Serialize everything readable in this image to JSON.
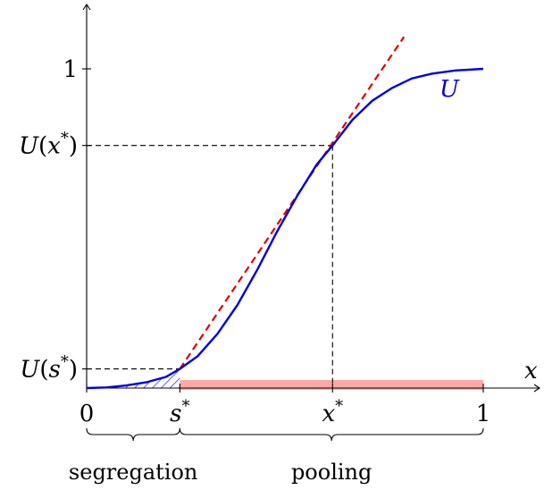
{
  "colors": {
    "curve": "#0000dd",
    "tangent": "#e00000",
    "pooling_bar": "#ffa8a8",
    "hatch": "#1a1aff"
  },
  "axis": {
    "x_label": "x"
  },
  "ticks": {
    "x": [
      {
        "value": 0,
        "label": "0"
      },
      {
        "value": 0.235,
        "label": "s*"
      },
      {
        "value": 0.62,
        "label": "x*"
      },
      {
        "value": 1,
        "label": "1"
      }
    ],
    "y": [
      {
        "value": 1,
        "label": "1"
      },
      {
        "value": 0.76,
        "label": "U(x*)"
      },
      {
        "value": 0.06,
        "label": "U(s*)"
      }
    ]
  },
  "curve": {
    "name": "U",
    "points": [
      [
        0,
        0.0
      ],
      [
        0.05,
        0.002
      ],
      [
        0.1,
        0.008
      ],
      [
        0.15,
        0.018
      ],
      [
        0.2,
        0.035
      ],
      [
        0.235,
        0.06
      ],
      [
        0.28,
        0.1
      ],
      [
        0.33,
        0.17
      ],
      [
        0.38,
        0.26
      ],
      [
        0.43,
        0.37
      ],
      [
        0.48,
        0.49
      ],
      [
        0.53,
        0.6
      ],
      [
        0.58,
        0.7
      ],
      [
        0.62,
        0.76
      ],
      [
        0.67,
        0.84
      ],
      [
        0.72,
        0.9
      ],
      [
        0.77,
        0.94
      ],
      [
        0.82,
        0.97
      ],
      [
        0.87,
        0.985
      ],
      [
        0.93,
        0.995
      ],
      [
        1.0,
        1.0
      ]
    ]
  },
  "tangent_line": {
    "from": [
      0.235,
      0.06
    ],
    "to": [
      0.8,
      1.1
    ]
  },
  "regions": [
    {
      "label": "segregation",
      "from": 0,
      "to": 0.235
    },
    {
      "label": "pooling",
      "from": 0.235,
      "to": 1
    }
  ],
  "pooling_bar": {
    "from": 0.235,
    "to": 1
  }
}
